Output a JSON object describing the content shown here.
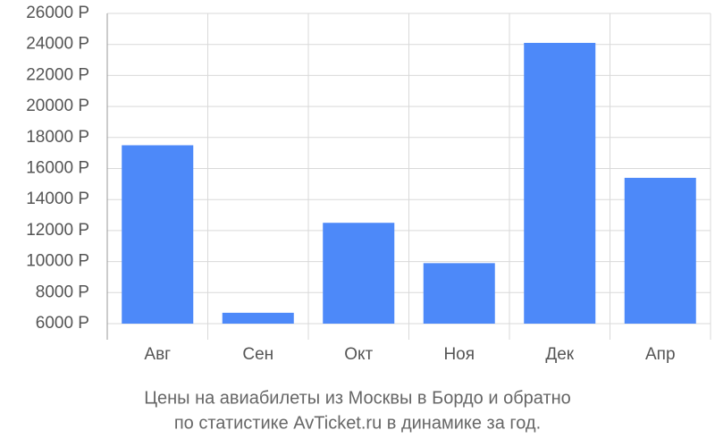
{
  "chart_data": {
    "type": "bar",
    "caption": [
      "Цены на авиабилеты из Москвы в Бордо и обратно",
      "по статистике AvTicket.ru в динамике за год."
    ],
    "categories": [
      "Авг",
      "Сен",
      "Окт",
      "Ноя",
      "Дек",
      "Апр"
    ],
    "values": [
      17500,
      6700,
      12500,
      9900,
      24100,
      15400
    ],
    "color": "#4d89f9",
    "ylim": [
      6000,
      26000
    ],
    "yticks": [
      {
        "value": 6000,
        "label": "6000 Р"
      },
      {
        "value": 8000,
        "label": "8000 Р"
      },
      {
        "value": 10000,
        "label": "10000 Р"
      },
      {
        "value": 12000,
        "label": "12000 Р"
      },
      {
        "value": 14000,
        "label": "14000 Р"
      },
      {
        "value": 16000,
        "label": "16000 Р"
      },
      {
        "value": 18000,
        "label": "18000 Р"
      },
      {
        "value": 20000,
        "label": "20000 Р"
      },
      {
        "value": 22000,
        "label": "22000 Р"
      },
      {
        "value": 24000,
        "label": "24000 Р"
      },
      {
        "value": 26000,
        "label": "26000 Р"
      }
    ],
    "grid": true
  }
}
